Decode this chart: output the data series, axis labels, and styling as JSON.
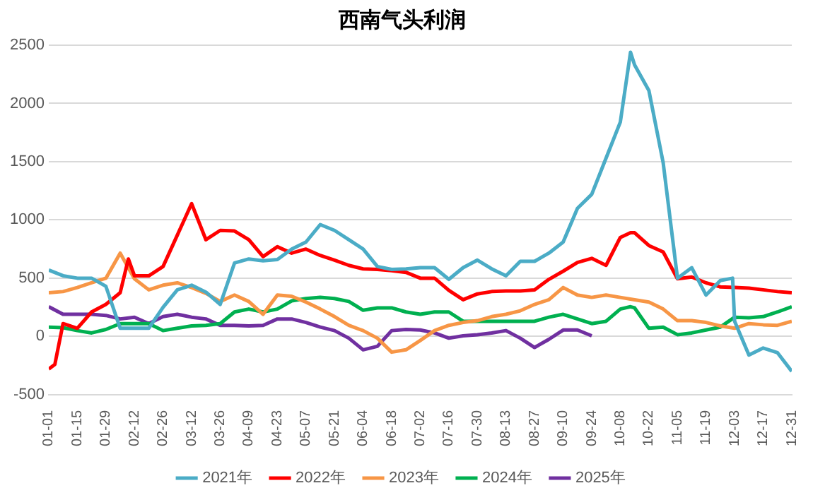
{
  "chart_data": {
    "type": "line",
    "title": "西南气头利润",
    "x": [
      "--01-01",
      "--01-08",
      "--01-15",
      "--01-22",
      "--01-29",
      "--02-05",
      "--02-12",
      "--02-19",
      "--02-26",
      "--03-05",
      "--03-12",
      "--03-19",
      "--03-26",
      "--04-02",
      "--04-09",
      "--04-16",
      "--04-23",
      "--04-30",
      "--05-07",
      "--05-14",
      "--05-21",
      "--05-28",
      "--06-04",
      "--06-11",
      "--06-18",
      "--06-25",
      "--07-02",
      "--07-09",
      "--07-16",
      "--07-23",
      "--07-30",
      "--08-06",
      "--08-13",
      "--08-20",
      "--08-27",
      "--09-03",
      "--09-10",
      "--09-17",
      "--09-24",
      "--10-01",
      "--10-08",
      "--10-15",
      "--10-22",
      "--10-29",
      "--11-05",
      "--11-12",
      "--11-19",
      "--11-26",
      "--12-03",
      "--12-10",
      "--12-17",
      "--12-24",
      "--12-31"
    ],
    "series": [
      {
        "name": "2021年",
        "color": "#4bacc6",
        "x": [
          "--01-01",
          "--01-08",
          "--01-15",
          "--01-22",
          "--01-29",
          "--02-05",
          "--02-12",
          "--02-19",
          "--02-26",
          "--03-05",
          "--03-12",
          "--03-19",
          "--03-26",
          "--04-02",
          "--04-09",
          "--04-16",
          "--04-23",
          "--04-30",
          "--05-07",
          "--05-14",
          "--05-21",
          "--05-28",
          "--06-04",
          "--06-11",
          "--06-18",
          "--06-25",
          "--07-02",
          "--07-09",
          "--07-16",
          "--07-23",
          "--07-30",
          "--08-06",
          "--08-13",
          "--08-20",
          "--08-27",
          "--09-03",
          "--09-10",
          "--09-17",
          "--09-24",
          "--10-01",
          "--10-08",
          "--10-13",
          "--10-15",
          "--10-22",
          "--10-29",
          "--11-05",
          "--11-12",
          "--11-19",
          "--11-26",
          "--12-02",
          "--12-03",
          "--12-10",
          "--12-17",
          "--12-24",
          "--12-31"
        ],
        "values": [
          570,
          521,
          500,
          500,
          430,
          70,
          70,
          70,
          250,
          400,
          440,
          380,
          275,
          630,
          665,
          650,
          660,
          750,
          810,
          960,
          910,
          830,
          750,
          600,
          575,
          580,
          590,
          590,
          490,
          590,
          655,
          580,
          520,
          645,
          645,
          715,
          810,
          1100,
          1220,
          1530,
          1840,
          2440,
          2330,
          2110,
          1490,
          500,
          590,
          355,
          480,
          500,
          130,
          -160,
          -100,
          -140,
          -300
        ]
      },
      {
        "name": "2022年",
        "color": "#ff0000",
        "x": [
          "--01-01",
          "--01-04",
          "--01-08",
          "--01-15",
          "--01-22",
          "--01-29",
          "--02-05",
          "--02-09",
          "--02-12",
          "--02-19",
          "--02-26",
          "--03-05",
          "--03-12",
          "--03-19",
          "--03-26",
          "--04-02",
          "--04-09",
          "--04-16",
          "--04-23",
          "--04-30",
          "--05-07",
          "--05-14",
          "--05-21",
          "--05-28",
          "--06-04",
          "--06-11",
          "--06-18",
          "--06-25",
          "--07-02",
          "--07-09",
          "--07-16",
          "--07-23",
          "--07-30",
          "--08-06",
          "--08-13",
          "--08-20",
          "--08-27",
          "--09-03",
          "--09-10",
          "--09-17",
          "--09-24",
          "--10-01",
          "--10-08",
          "--10-13",
          "--10-15",
          "--10-22",
          "--10-29",
          "--11-05",
          "--11-12",
          "--11-19",
          "--11-26",
          "--12-03",
          "--12-10",
          "--12-17",
          "--12-24",
          "--12-31"
        ],
        "values": [
          -280,
          -240,
          110,
          70,
          210,
          275,
          375,
          665,
          520,
          520,
          600,
          870,
          1140,
          830,
          910,
          905,
          830,
          685,
          770,
          715,
          750,
          695,
          655,
          610,
          580,
          575,
          565,
          550,
          500,
          500,
          395,
          315,
          365,
          385,
          390,
          390,
          400,
          490,
          560,
          635,
          670,
          610,
          850,
          890,
          890,
          780,
          725,
          495,
          510,
          460,
          425,
          420,
          415,
          400,
          385,
          375
        ]
      },
      {
        "name": "2023年",
        "color": "#f79646",
        "values": [
          375,
          385,
          420,
          460,
          500,
          715,
          495,
          400,
          440,
          460,
          420,
          370,
          300,
          355,
          300,
          190,
          355,
          345,
          295,
          235,
          170,
          95,
          50,
          -15,
          -135,
          -115,
          -35,
          50,
          95,
          120,
          135,
          170,
          190,
          220,
          275,
          315,
          420,
          355,
          335,
          355,
          335,
          315,
          295,
          235,
          135,
          135,
          120,
          90,
          70,
          110,
          100,
          95,
          130
        ]
      },
      {
        "name": "2024年",
        "color": "#00b050",
        "x": [
          "--01-01",
          "--01-08",
          "--01-15",
          "--01-22",
          "--01-29",
          "--02-05",
          "--02-12",
          "--02-19",
          "--02-26",
          "--03-05",
          "--03-12",
          "--03-19",
          "--03-26",
          "--04-02",
          "--04-09",
          "--04-16",
          "--04-23",
          "--04-30",
          "--05-07",
          "--05-14",
          "--05-21",
          "--05-28",
          "--06-04",
          "--06-11",
          "--06-18",
          "--06-25",
          "--07-02",
          "--07-09",
          "--07-16",
          "--07-23",
          "--07-30",
          "--08-06",
          "--08-13",
          "--08-20",
          "--08-27",
          "--09-03",
          "--09-10",
          "--09-17",
          "--09-24",
          "--10-01",
          "--10-08",
          "--10-13",
          "--10-15",
          "--10-22",
          "--10-29",
          "--11-05",
          "--11-12",
          "--11-19",
          "--11-26",
          "--12-03",
          "--12-10",
          "--12-17",
          "--12-24",
          "--12-31"
        ],
        "values": [
          80,
          75,
          50,
          30,
          60,
          110,
          110,
          110,
          50,
          70,
          90,
          95,
          110,
          210,
          235,
          210,
          235,
          305,
          325,
          335,
          325,
          300,
          225,
          245,
          245,
          210,
          190,
          210,
          210,
          130,
          130,
          130,
          130,
          130,
          130,
          165,
          190,
          150,
          110,
          130,
          235,
          255,
          245,
          70,
          80,
          15,
          30,
          55,
          80,
          165,
          160,
          170,
          210,
          255
        ]
      },
      {
        "name": "2025年",
        "color": "#7030a0",
        "values": [
          255,
          190,
          190,
          190,
          180,
          150,
          165,
          110,
          170,
          190,
          165,
          150,
          95,
          95,
          90,
          95,
          150,
          150,
          120,
          80,
          50,
          -15,
          -115,
          -85,
          50,
          60,
          55,
          30,
          -15,
          5,
          15,
          30,
          50,
          -15,
          -95,
          -25,
          55,
          55,
          5,
          null,
          null,
          null,
          null,
          null,
          null,
          null,
          null,
          null,
          null,
          null,
          null,
          null,
          null
        ]
      }
    ],
    "xlim": [
      "--01-01",
      "--12-31"
    ],
    "xticks": [
      {
        "value": "--01-01",
        "label": "01-01"
      },
      {
        "value": "--01-15",
        "label": "01-15"
      },
      {
        "value": "--01-29",
        "label": "01-29"
      },
      {
        "value": "--02-12",
        "label": "02-12"
      },
      {
        "value": "--02-26",
        "label": "02-26"
      },
      {
        "value": "--03-12",
        "label": "03-12"
      },
      {
        "value": "--03-26",
        "label": "03-26"
      },
      {
        "value": "--04-09",
        "label": "04-09"
      },
      {
        "value": "--04-23",
        "label": "04-23"
      },
      {
        "value": "--05-07",
        "label": "05-07"
      },
      {
        "value": "--05-21",
        "label": "05-21"
      },
      {
        "value": "--06-04",
        "label": "06-04"
      },
      {
        "value": "--06-18",
        "label": "06-18"
      },
      {
        "value": "--07-02",
        "label": "07-02"
      },
      {
        "value": "--07-16",
        "label": "07-16"
      },
      {
        "value": "--07-30",
        "label": "07-30"
      },
      {
        "value": "--08-13",
        "label": "08-13"
      },
      {
        "value": "--08-27",
        "label": "08-27"
      },
      {
        "value": "--09-10",
        "label": "09-10"
      },
      {
        "value": "--09-24",
        "label": "09-24"
      },
      {
        "value": "--10-08",
        "label": "10-08"
      },
      {
        "value": "--10-22",
        "label": "10-22"
      },
      {
        "value": "--11-05",
        "label": "11-05"
      },
      {
        "value": "--11-19",
        "label": "11-19"
      },
      {
        "value": "--12-03",
        "label": "12-03"
      },
      {
        "value": "--12-17",
        "label": "12-17"
      },
      {
        "value": "--12-31",
        "label": "12-31"
      }
    ],
    "ylim": [
      -500,
      2500
    ],
    "yticks": [
      -500,
      0,
      500,
      1000,
      1500,
      2000,
      2500
    ],
    "grid": "y",
    "legend": "bottom",
    "marker": "none",
    "line_style": "solid"
  }
}
